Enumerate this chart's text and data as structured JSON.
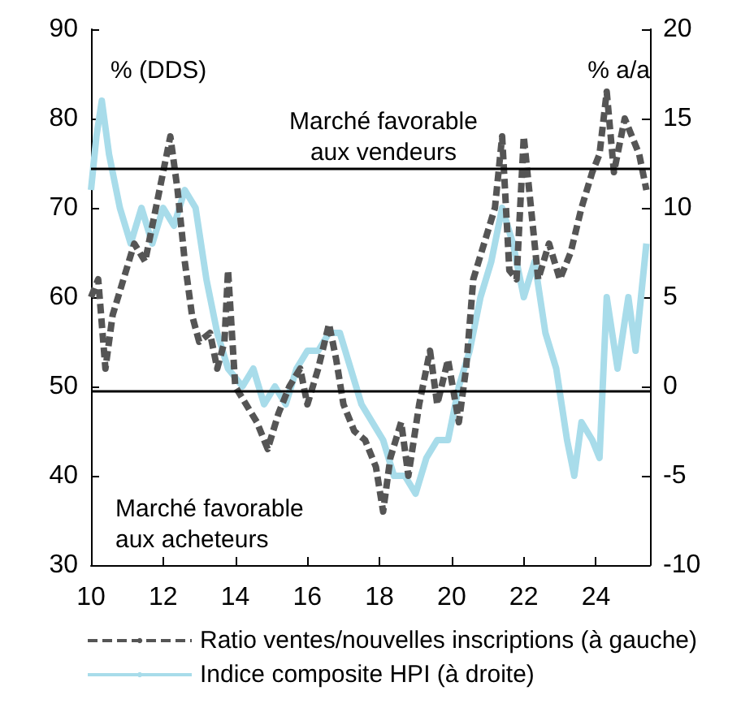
{
  "chart_data": {
    "type": "line",
    "ylabel": "% (DDS)",
    "y2label": "% a/a",
    "annotations": [
      "Marché favorable\naux vendeurs",
      "Marché favorable\naux acheteurs"
    ],
    "xlim": [
      10,
      25.5
    ],
    "xticks": [
      10,
      12,
      14,
      16,
      18,
      20,
      22,
      24
    ],
    "ylim": [
      30,
      90
    ],
    "yticks": [
      30,
      40,
      50,
      60,
      70,
      80,
      90
    ],
    "y2lim": [
      -10,
      20
    ],
    "y2ticks": [
      -10,
      -5,
      0,
      5,
      10,
      15,
      20
    ],
    "legend": "bottom",
    "grid": false,
    "ref_lines": [
      {
        "axis": "y",
        "value": 74.5,
        "color": "#000000"
      },
      {
        "axis": "y",
        "value": 49.5,
        "color": "#000000"
      }
    ],
    "series": [
      {
        "name": "Ratio ventes/nouvelles inscriptions (à gauche)",
        "color": "#555555",
        "line_style": "dashed",
        "x": [
          10.0,
          10.2,
          10.4,
          10.6,
          10.9,
          11.2,
          11.5,
          11.8,
          12.0,
          12.2,
          12.4,
          12.6,
          12.8,
          13.0,
          13.3,
          13.5,
          13.7,
          13.8,
          14.0,
          14.3,
          14.6,
          14.9,
          15.2,
          15.5,
          15.8,
          16.0,
          16.3,
          16.6,
          16.8,
          17.0,
          17.3,
          17.6,
          17.9,
          18.1,
          18.3,
          18.6,
          18.8,
          19.1,
          19.4,
          19.6,
          19.9,
          20.2,
          20.4,
          20.6,
          20.9,
          21.2,
          21.4,
          21.6,
          21.8,
          22.0,
          22.2,
          22.4,
          22.7,
          23.0,
          23.3,
          23.6,
          23.9,
          24.1,
          24.3,
          24.5,
          24.8,
          25.0,
          25.2,
          25.4
        ],
        "values": [
          60,
          62,
          52,
          58,
          62,
          66,
          64,
          70,
          74,
          78,
          72,
          64,
          58,
          55,
          56,
          52,
          55,
          63,
          50,
          48,
          46,
          43,
          47,
          50,
          52,
          48,
          52,
          57,
          53,
          48,
          45,
          44,
          41,
          36,
          42,
          46,
          40,
          48,
          54,
          48,
          53,
          46,
          52,
          62,
          66,
          70,
          78,
          63,
          62,
          78,
          70,
          62,
          66,
          62,
          65,
          70,
          74,
          76,
          83,
          74,
          80,
          78,
          76,
          72
        ]
      },
      {
        "name": "Indice composite HPI (à droite)",
        "color": "#a8dcea",
        "axis": "y2",
        "x": [
          10.0,
          10.15,
          10.3,
          10.5,
          10.8,
          11.1,
          11.4,
          11.7,
          12.0,
          12.3,
          12.6,
          12.9,
          13.2,
          13.5,
          13.8,
          14.2,
          14.5,
          14.8,
          15.1,
          15.4,
          15.7,
          16.0,
          16.3,
          16.6,
          16.9,
          17.2,
          17.5,
          17.8,
          18.1,
          18.4,
          18.7,
          19.0,
          19.3,
          19.6,
          19.9,
          20.2,
          20.5,
          20.8,
          21.1,
          21.4,
          21.7,
          22.0,
          22.3,
          22.6,
          22.9,
          23.2,
          23.4,
          23.6,
          23.9,
          24.1,
          24.3,
          24.6,
          24.9,
          25.1,
          25.4
        ],
        "values": [
          11,
          14,
          16,
          13,
          10,
          8,
          10,
          8,
          10,
          9,
          11,
          10,
          6,
          3,
          1,
          0,
          1,
          -1,
          0,
          -1,
          1,
          2,
          2,
          3,
          3,
          1,
          -1,
          -2,
          -3,
          -5,
          -5,
          -6,
          -4,
          -3,
          -3,
          0,
          2,
          5,
          7,
          10,
          8,
          5,
          7,
          3,
          1,
          -3,
          -5,
          -2,
          -3,
          -4,
          5,
          1,
          5,
          2,
          8
        ]
      }
    ]
  }
}
